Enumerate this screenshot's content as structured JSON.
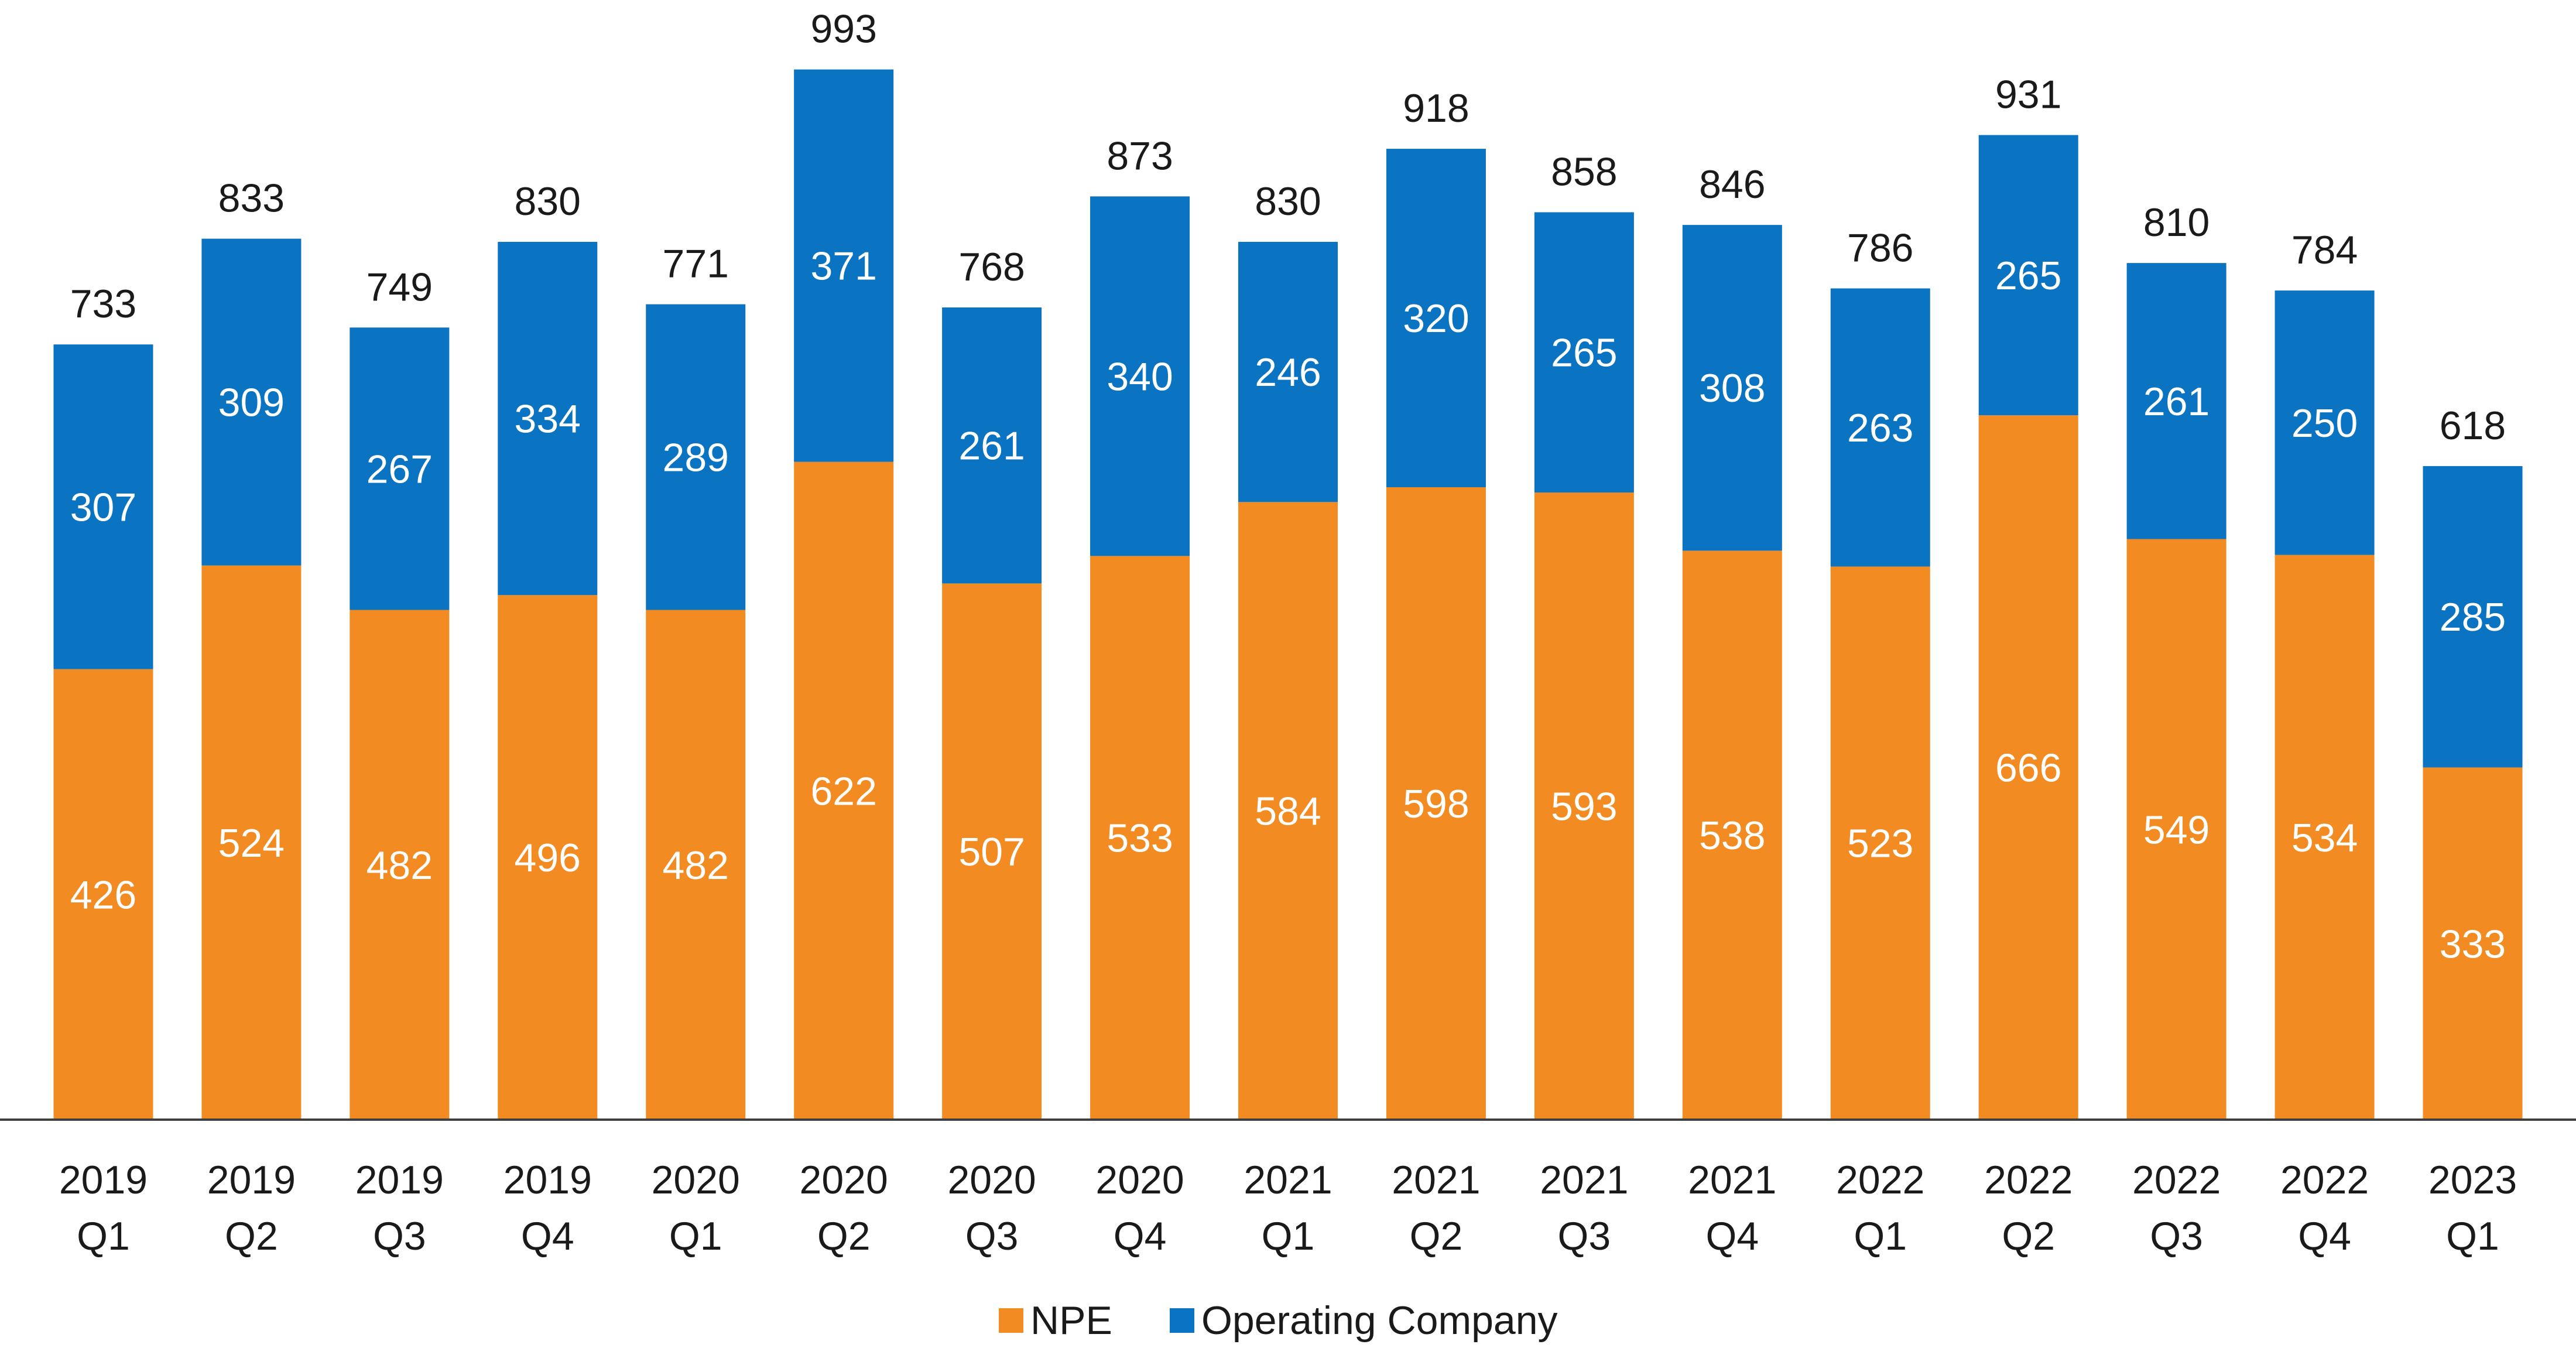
{
  "chart_data": {
    "type": "bar",
    "stacked": true,
    "categories": [
      [
        "2019",
        "Q1"
      ],
      [
        "2019",
        "Q2"
      ],
      [
        "2019",
        "Q3"
      ],
      [
        "2019",
        "Q4"
      ],
      [
        "2020",
        "Q1"
      ],
      [
        "2020",
        "Q2"
      ],
      [
        "2020",
        "Q3"
      ],
      [
        "2020",
        "Q4"
      ],
      [
        "2021",
        "Q1"
      ],
      [
        "2021",
        "Q2"
      ],
      [
        "2021",
        "Q3"
      ],
      [
        "2021",
        "Q4"
      ],
      [
        "2022",
        "Q1"
      ],
      [
        "2022",
        "Q2"
      ],
      [
        "2022",
        "Q3"
      ],
      [
        "2022",
        "Q4"
      ],
      [
        "2023",
        "Q1"
      ]
    ],
    "series": [
      {
        "name": "NPE",
        "color": "#F28C22",
        "values": [
          426,
          524,
          482,
          496,
          482,
          622,
          507,
          533,
          584,
          598,
          593,
          538,
          523,
          666,
          549,
          534,
          333
        ]
      },
      {
        "name": "Operating Company",
        "color": "#0A73C2",
        "values": [
          307,
          309,
          267,
          334,
          289,
          371,
          261,
          340,
          246,
          320,
          265,
          308,
          263,
          265,
          261,
          250,
          285
        ]
      }
    ],
    "totals": [
      733,
      833,
      749,
      830,
      771,
      993,
      768,
      873,
      830,
      918,
      858,
      846,
      786,
      931,
      810,
      784,
      618
    ],
    "ylim": [
      0,
      1000
    ],
    "grid": false,
    "legend_position": "bottom-center",
    "title": "",
    "xlabel": "",
    "ylabel": ""
  }
}
